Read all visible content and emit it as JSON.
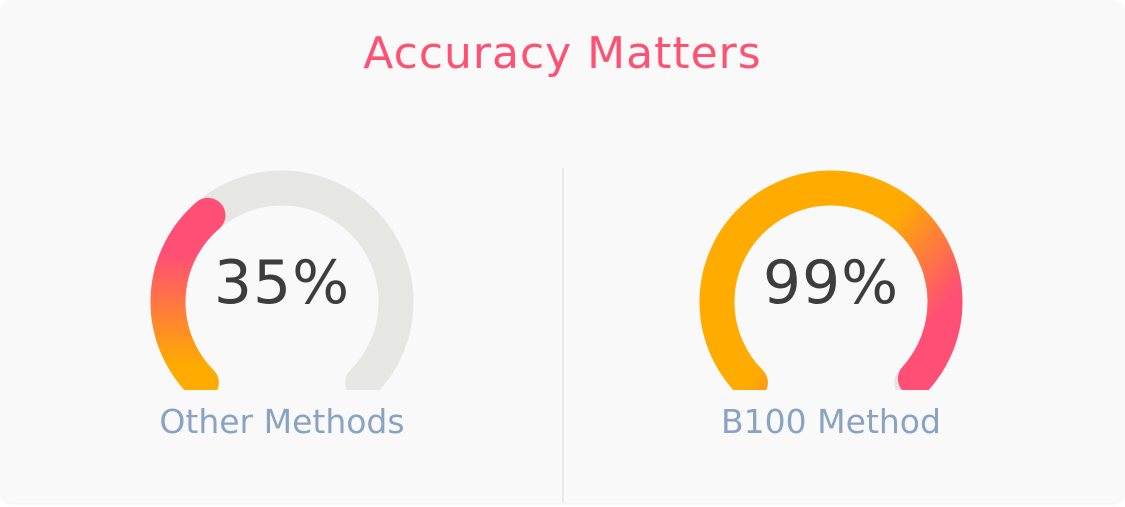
{
  "title": "Accuracy Matters",
  "colors": {
    "title": "#ff5272",
    "label": "#8aa3c2",
    "track": "#e6e6e2",
    "gradient_start": "#ffab00",
    "gradient_end": "#ff4f74"
  },
  "gauges": [
    {
      "value": "35%",
      "fraction": 0.35,
      "label": "Other Methods"
    },
    {
      "value": "99%",
      "fraction": 0.99,
      "label": "B100 Method"
    }
  ]
}
